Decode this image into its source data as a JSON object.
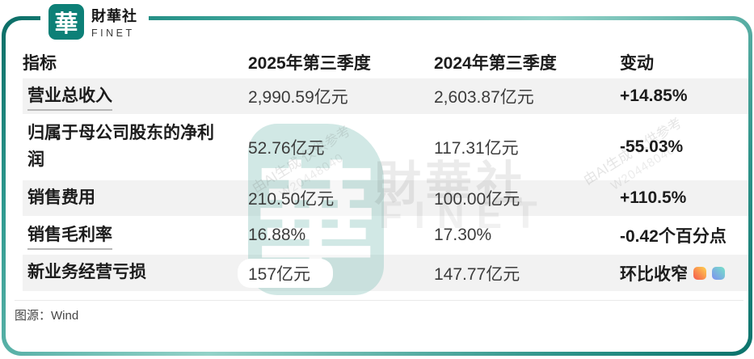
{
  "brand": {
    "logo_glyph": "華",
    "name": "財華社",
    "subname": "FINET",
    "teal": "#0d8077"
  },
  "chart_data": {
    "type": "table",
    "columns": [
      "指标",
      "2025年第三季度",
      "2024年第三季度",
      "变动"
    ],
    "rows": [
      [
        "营业总收入",
        "2,990.59亿元",
        "2,603.87亿元",
        "+14.85%"
      ],
      [
        "归属于母公司股东的净利润",
        "52.76亿元",
        "117.31亿元",
        "-55.03%"
      ],
      [
        "销售费用",
        "210.50亿元",
        "100.00亿元",
        "+110.5%"
      ],
      [
        "销售毛利率",
        "16.88%",
        "17.30%",
        "-0.42个百分点"
      ],
      [
        "新业务经营亏损",
        "157亿元",
        "147.77亿元",
        "环比收窄"
      ]
    ],
    "title": "",
    "source": "图源：Wind"
  },
  "footer": {
    "source_label": "图源：Wind"
  },
  "watermarks": {
    "logo_glyph": "華",
    "brand_name": "財華社",
    "brand_subname": "FINET",
    "ai_line1": "由AI生成 仅供参考",
    "ai_line2": "W20448040"
  },
  "colors": {
    "frame_gradient_dark": "#0b6d66",
    "frame_gradient_light": "#93d2c8",
    "row_stripe": "#f2f2f2",
    "change_icon_warm": [
      "#ffd24f",
      "#f4564e"
    ],
    "change_icon_cool": [
      "#77e3c8",
      "#7e8ff0"
    ]
  }
}
